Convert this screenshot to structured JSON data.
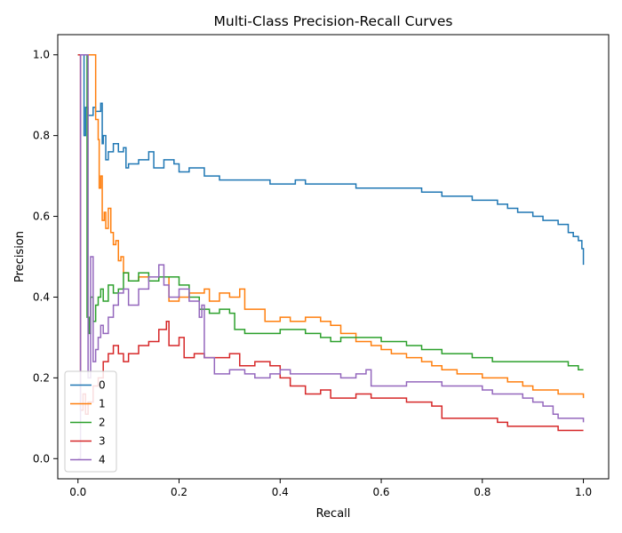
{
  "chart_data": {
    "type": "line",
    "title": "Multi-Class Precision-Recall Curves",
    "xlabel": "Recall",
    "ylabel": "Precision",
    "xlim": [
      -0.04,
      1.05
    ],
    "ylim": [
      -0.05,
      1.05
    ],
    "xticks": [
      0.0,
      0.2,
      0.4,
      0.6,
      0.8,
      1.0
    ],
    "yticks": [
      0.0,
      0.2,
      0.4,
      0.6,
      0.8,
      1.0
    ],
    "xtick_labels": [
      "0.0",
      "0.2",
      "0.4",
      "0.6",
      "0.8",
      "1.0"
    ],
    "ytick_labels": [
      "0.0",
      "0.2",
      "0.4",
      "0.6",
      "0.8",
      "1.0"
    ],
    "grid": false,
    "legend_position": "lower-left",
    "series": [
      {
        "name": "0",
        "color": "#1f77b4",
        "points": [
          [
            0.0,
            1.0
          ],
          [
            0.01,
            1.0
          ],
          [
            0.012,
            0.8
          ],
          [
            0.015,
            0.87
          ],
          [
            0.02,
            0.85
          ],
          [
            0.03,
            0.87
          ],
          [
            0.035,
            0.86
          ],
          [
            0.045,
            0.88
          ],
          [
            0.048,
            0.78
          ],
          [
            0.05,
            0.8
          ],
          [
            0.055,
            0.74
          ],
          [
            0.06,
            0.76
          ],
          [
            0.07,
            0.78
          ],
          [
            0.08,
            0.76
          ],
          [
            0.09,
            0.77
          ],
          [
            0.095,
            0.72
          ],
          [
            0.1,
            0.73
          ],
          [
            0.12,
            0.74
          ],
          [
            0.14,
            0.76
          ],
          [
            0.15,
            0.72
          ],
          [
            0.17,
            0.74
          ],
          [
            0.19,
            0.73
          ],
          [
            0.2,
            0.71
          ],
          [
            0.22,
            0.72
          ],
          [
            0.25,
            0.7
          ],
          [
            0.28,
            0.69
          ],
          [
            0.3,
            0.69
          ],
          [
            0.33,
            0.69
          ],
          [
            0.36,
            0.69
          ],
          [
            0.38,
            0.68
          ],
          [
            0.4,
            0.68
          ],
          [
            0.43,
            0.69
          ],
          [
            0.45,
            0.68
          ],
          [
            0.48,
            0.68
          ],
          [
            0.5,
            0.68
          ],
          [
            0.53,
            0.68
          ],
          [
            0.55,
            0.67
          ],
          [
            0.58,
            0.67
          ],
          [
            0.6,
            0.67
          ],
          [
            0.62,
            0.67
          ],
          [
            0.65,
            0.67
          ],
          [
            0.68,
            0.66
          ],
          [
            0.7,
            0.66
          ],
          [
            0.72,
            0.65
          ],
          [
            0.75,
            0.65
          ],
          [
            0.78,
            0.64
          ],
          [
            0.8,
            0.64
          ],
          [
            0.83,
            0.63
          ],
          [
            0.85,
            0.62
          ],
          [
            0.87,
            0.61
          ],
          [
            0.9,
            0.6
          ],
          [
            0.92,
            0.59
          ],
          [
            0.95,
            0.58
          ],
          [
            0.97,
            0.56
          ],
          [
            0.98,
            0.55
          ],
          [
            0.99,
            0.54
          ],
          [
            0.997,
            0.52
          ],
          [
            1.0,
            0.48
          ]
        ]
      },
      {
        "name": "1",
        "color": "#ff7f0e",
        "points": [
          [
            0.0,
            1.0
          ],
          [
            0.035,
            1.0
          ],
          [
            0.035,
            0.84
          ],
          [
            0.04,
            0.79
          ],
          [
            0.042,
            0.67
          ],
          [
            0.045,
            0.7
          ],
          [
            0.048,
            0.59
          ],
          [
            0.052,
            0.61
          ],
          [
            0.055,
            0.57
          ],
          [
            0.06,
            0.62
          ],
          [
            0.065,
            0.56
          ],
          [
            0.07,
            0.53
          ],
          [
            0.075,
            0.54
          ],
          [
            0.08,
            0.49
          ],
          [
            0.085,
            0.5
          ],
          [
            0.09,
            0.46
          ],
          [
            0.1,
            0.44
          ],
          [
            0.12,
            0.45
          ],
          [
            0.14,
            0.45
          ],
          [
            0.16,
            0.45
          ],
          [
            0.18,
            0.39
          ],
          [
            0.2,
            0.4
          ],
          [
            0.22,
            0.41
          ],
          [
            0.25,
            0.42
          ],
          [
            0.26,
            0.39
          ],
          [
            0.28,
            0.41
          ],
          [
            0.3,
            0.4
          ],
          [
            0.32,
            0.42
          ],
          [
            0.33,
            0.37
          ],
          [
            0.35,
            0.37
          ],
          [
            0.37,
            0.34
          ],
          [
            0.4,
            0.35
          ],
          [
            0.42,
            0.34
          ],
          [
            0.45,
            0.35
          ],
          [
            0.48,
            0.34
          ],
          [
            0.5,
            0.33
          ],
          [
            0.52,
            0.31
          ],
          [
            0.55,
            0.29
          ],
          [
            0.58,
            0.28
          ],
          [
            0.6,
            0.27
          ],
          [
            0.62,
            0.26
          ],
          [
            0.65,
            0.25
          ],
          [
            0.68,
            0.24
          ],
          [
            0.7,
            0.23
          ],
          [
            0.72,
            0.22
          ],
          [
            0.75,
            0.21
          ],
          [
            0.78,
            0.21
          ],
          [
            0.8,
            0.2
          ],
          [
            0.82,
            0.2
          ],
          [
            0.85,
            0.19
          ],
          [
            0.88,
            0.18
          ],
          [
            0.9,
            0.17
          ],
          [
            0.92,
            0.17
          ],
          [
            0.95,
            0.16
          ],
          [
            0.97,
            0.16
          ],
          [
            0.99,
            0.16
          ],
          [
            1.0,
            0.15
          ]
        ]
      },
      {
        "name": "2",
        "color": "#2ca02c",
        "points": [
          [
            0.0,
            1.0
          ],
          [
            0.018,
            1.0
          ],
          [
            0.018,
            0.35
          ],
          [
            0.022,
            0.31
          ],
          [
            0.025,
            0.4
          ],
          [
            0.03,
            0.34
          ],
          [
            0.035,
            0.38
          ],
          [
            0.04,
            0.4
          ],
          [
            0.045,
            0.42
          ],
          [
            0.05,
            0.39
          ],
          [
            0.06,
            0.43
          ],
          [
            0.07,
            0.41
          ],
          [
            0.08,
            0.42
          ],
          [
            0.09,
            0.46
          ],
          [
            0.1,
            0.44
          ],
          [
            0.12,
            0.46
          ],
          [
            0.14,
            0.44
          ],
          [
            0.16,
            0.45
          ],
          [
            0.18,
            0.45
          ],
          [
            0.2,
            0.43
          ],
          [
            0.22,
            0.4
          ],
          [
            0.24,
            0.37
          ],
          [
            0.26,
            0.36
          ],
          [
            0.28,
            0.37
          ],
          [
            0.3,
            0.36
          ],
          [
            0.31,
            0.32
          ],
          [
            0.33,
            0.31
          ],
          [
            0.35,
            0.31
          ],
          [
            0.38,
            0.31
          ],
          [
            0.4,
            0.32
          ],
          [
            0.42,
            0.32
          ],
          [
            0.45,
            0.31
          ],
          [
            0.48,
            0.3
          ],
          [
            0.5,
            0.29
          ],
          [
            0.52,
            0.3
          ],
          [
            0.55,
            0.3
          ],
          [
            0.58,
            0.3
          ],
          [
            0.6,
            0.29
          ],
          [
            0.62,
            0.29
          ],
          [
            0.65,
            0.28
          ],
          [
            0.68,
            0.27
          ],
          [
            0.7,
            0.27
          ],
          [
            0.72,
            0.26
          ],
          [
            0.75,
            0.26
          ],
          [
            0.78,
            0.25
          ],
          [
            0.8,
            0.25
          ],
          [
            0.82,
            0.24
          ],
          [
            0.85,
            0.24
          ],
          [
            0.88,
            0.24
          ],
          [
            0.9,
            0.24
          ],
          [
            0.93,
            0.24
          ],
          [
            0.95,
            0.24
          ],
          [
            0.97,
            0.23
          ],
          [
            0.99,
            0.22
          ],
          [
            1.0,
            0.22
          ]
        ]
      },
      {
        "name": "3",
        "color": "#d62728",
        "points": [
          [
            0.0,
            1.0
          ],
          [
            0.005,
            1.0
          ],
          [
            0.005,
            0.12
          ],
          [
            0.01,
            0.16
          ],
          [
            0.015,
            0.11
          ],
          [
            0.02,
            0.14
          ],
          [
            0.03,
            0.18
          ],
          [
            0.04,
            0.2
          ],
          [
            0.05,
            0.24
          ],
          [
            0.06,
            0.26
          ],
          [
            0.07,
            0.28
          ],
          [
            0.08,
            0.26
          ],
          [
            0.09,
            0.24
          ],
          [
            0.1,
            0.26
          ],
          [
            0.12,
            0.28
          ],
          [
            0.14,
            0.29
          ],
          [
            0.16,
            0.32
          ],
          [
            0.175,
            0.34
          ],
          [
            0.18,
            0.28
          ],
          [
            0.2,
            0.3
          ],
          [
            0.21,
            0.25
          ],
          [
            0.23,
            0.26
          ],
          [
            0.25,
            0.25
          ],
          [
            0.27,
            0.25
          ],
          [
            0.3,
            0.26
          ],
          [
            0.32,
            0.23
          ],
          [
            0.35,
            0.24
          ],
          [
            0.38,
            0.23
          ],
          [
            0.4,
            0.2
          ],
          [
            0.42,
            0.18
          ],
          [
            0.45,
            0.16
          ],
          [
            0.48,
            0.17
          ],
          [
            0.5,
            0.15
          ],
          [
            0.53,
            0.15
          ],
          [
            0.55,
            0.16
          ],
          [
            0.58,
            0.15
          ],
          [
            0.6,
            0.15
          ],
          [
            0.62,
            0.15
          ],
          [
            0.65,
            0.14
          ],
          [
            0.68,
            0.14
          ],
          [
            0.7,
            0.13
          ],
          [
            0.72,
            0.1
          ],
          [
            0.75,
            0.1
          ],
          [
            0.78,
            0.1
          ],
          [
            0.8,
            0.1
          ],
          [
            0.83,
            0.09
          ],
          [
            0.85,
            0.08
          ],
          [
            0.88,
            0.08
          ],
          [
            0.9,
            0.08
          ],
          [
            0.93,
            0.08
          ],
          [
            0.95,
            0.07
          ],
          [
            0.98,
            0.07
          ],
          [
            1.0,
            0.07
          ]
        ]
      },
      {
        "name": "4",
        "color": "#9467bd",
        "points": [
          [
            0.0,
            0.0
          ],
          [
            0.005,
            1.0
          ],
          [
            0.015,
            1.0
          ],
          [
            0.02,
            0.2
          ],
          [
            0.025,
            0.5
          ],
          [
            0.03,
            0.24
          ],
          [
            0.035,
            0.27
          ],
          [
            0.04,
            0.3
          ],
          [
            0.045,
            0.33
          ],
          [
            0.05,
            0.31
          ],
          [
            0.06,
            0.35
          ],
          [
            0.07,
            0.38
          ],
          [
            0.08,
            0.41
          ],
          [
            0.09,
            0.42
          ],
          [
            0.1,
            0.38
          ],
          [
            0.12,
            0.42
          ],
          [
            0.14,
            0.45
          ],
          [
            0.16,
            0.48
          ],
          [
            0.17,
            0.43
          ],
          [
            0.18,
            0.4
          ],
          [
            0.2,
            0.42
          ],
          [
            0.22,
            0.39
          ],
          [
            0.24,
            0.35
          ],
          [
            0.245,
            0.38
          ],
          [
            0.25,
            0.25
          ],
          [
            0.27,
            0.21
          ],
          [
            0.3,
            0.22
          ],
          [
            0.33,
            0.21
          ],
          [
            0.35,
            0.2
          ],
          [
            0.38,
            0.21
          ],
          [
            0.4,
            0.22
          ],
          [
            0.42,
            0.21
          ],
          [
            0.45,
            0.21
          ],
          [
            0.48,
            0.21
          ],
          [
            0.5,
            0.21
          ],
          [
            0.52,
            0.2
          ],
          [
            0.55,
            0.21
          ],
          [
            0.57,
            0.22
          ],
          [
            0.58,
            0.18
          ],
          [
            0.6,
            0.18
          ],
          [
            0.62,
            0.18
          ],
          [
            0.65,
            0.19
          ],
          [
            0.68,
            0.19
          ],
          [
            0.7,
            0.19
          ],
          [
            0.72,
            0.18
          ],
          [
            0.75,
            0.18
          ],
          [
            0.78,
            0.18
          ],
          [
            0.8,
            0.17
          ],
          [
            0.82,
            0.16
          ],
          [
            0.85,
            0.16
          ],
          [
            0.88,
            0.15
          ],
          [
            0.9,
            0.14
          ],
          [
            0.92,
            0.13
          ],
          [
            0.94,
            0.11
          ],
          [
            0.95,
            0.1
          ],
          [
            0.97,
            0.1
          ],
          [
            0.99,
            0.1
          ],
          [
            1.0,
            0.09
          ]
        ]
      }
    ]
  }
}
